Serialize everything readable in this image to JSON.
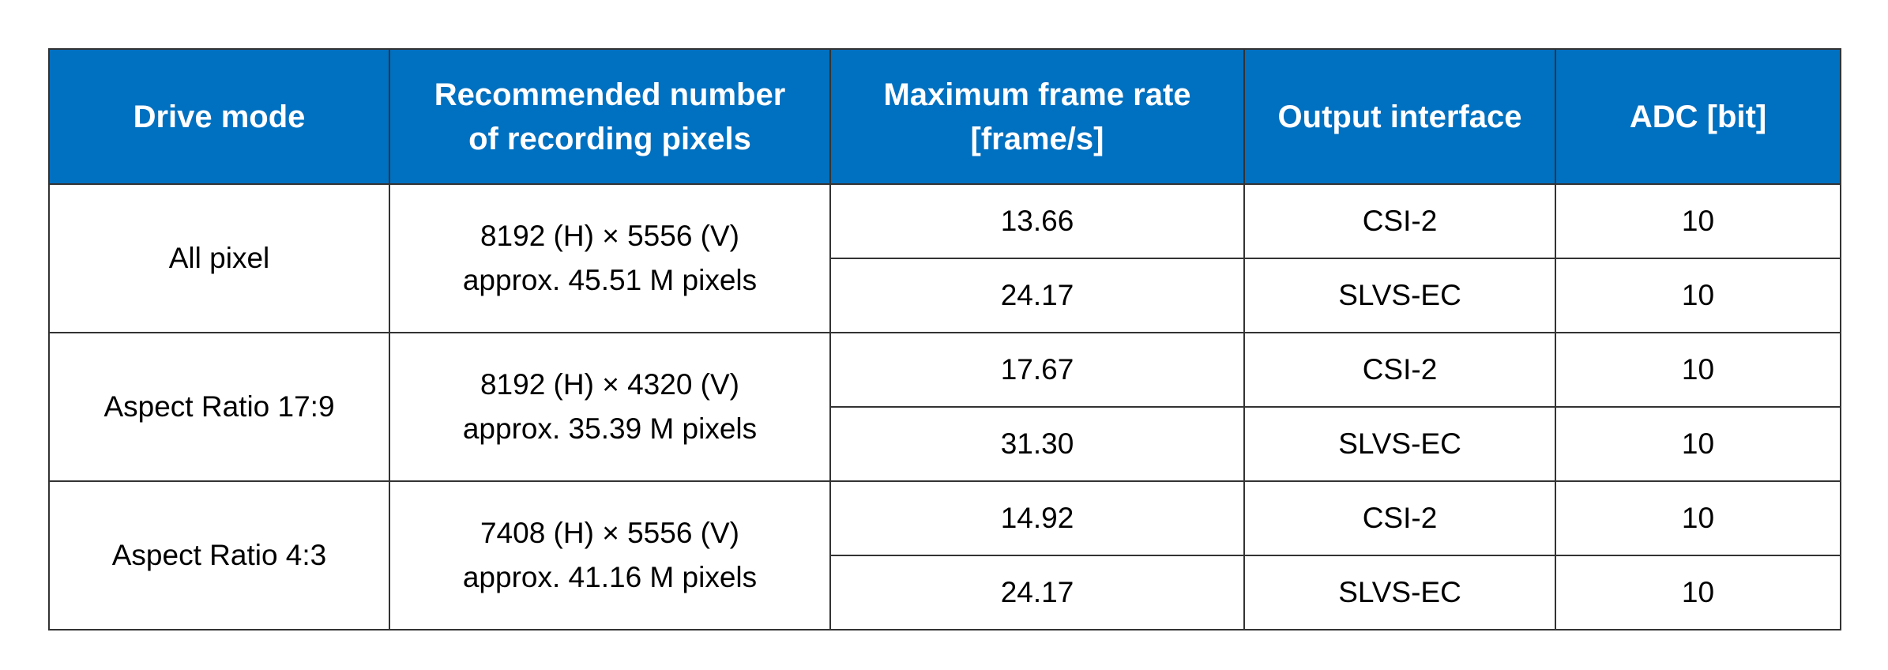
{
  "table": {
    "header": [
      [
        "Drive mode"
      ],
      [
        "Recommended number",
        "of recording pixels"
      ],
      [
        "Maximum frame rate",
        "[frame/s]"
      ],
      [
        "Output interface"
      ],
      [
        "ADC [bit]"
      ]
    ],
    "rows": [
      {
        "drive_mode": "All pixel",
        "pixels": [
          "8192 (H) × 5556 (V)",
          "approx. 45.51 M pixels"
        ],
        "modes": [
          {
            "frame_rate": "13.66",
            "interface": "CSI-2",
            "adc": "10"
          },
          {
            "frame_rate": "24.17",
            "interface": "SLVS-EC",
            "adc": "10"
          }
        ]
      },
      {
        "drive_mode": "Aspect Ratio 17:9",
        "pixels": [
          "8192 (H) × 4320 (V)",
          "approx. 35.39 M pixels"
        ],
        "modes": [
          {
            "frame_rate": "17.67",
            "interface": "CSI-2",
            "adc": "10"
          },
          {
            "frame_rate": "31.30",
            "interface": "SLVS-EC",
            "adc": "10"
          }
        ]
      },
      {
        "drive_mode": "Aspect Ratio 4:3",
        "pixels": [
          "7408 (H) × 5556 (V)",
          "approx. 41.16 M pixels"
        ],
        "modes": [
          {
            "frame_rate": "14.92",
            "interface": "CSI-2",
            "adc": "10"
          },
          {
            "frame_rate": "24.17",
            "interface": "SLVS-EC",
            "adc": "10"
          }
        ]
      }
    ]
  }
}
